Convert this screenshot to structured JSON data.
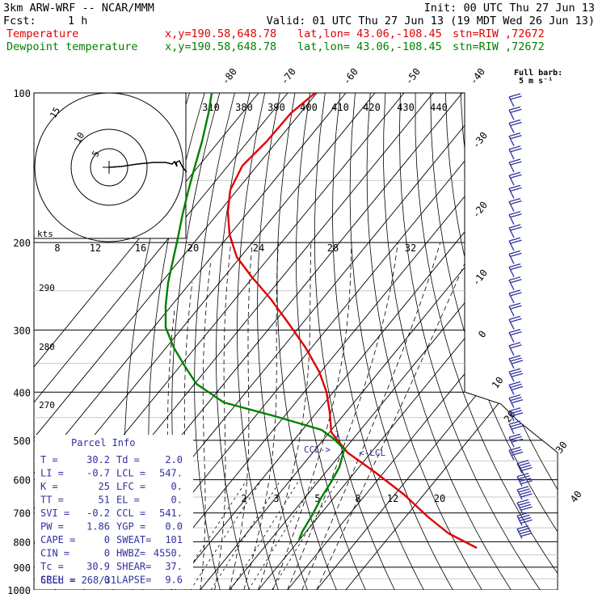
{
  "header": {
    "model": "3km ARW-WRF -- NCAR/MMM",
    "init": "Init: 00 UTC Thu 27 Jun 13",
    "fcst_label": "Fcst:",
    "fcst_value": "1 h",
    "valid": "Valid: 01 UTC Thu 27 Jun 13 (19 MDT Wed 26 Jun 13)",
    "temp_name": "Temperature",
    "dew_name": "Dewpoint temperature",
    "xy": "x,y=190.58,648.78",
    "latlon": "lat,lon= 43.06,-108.45",
    "stn": "stn=RIW ,72672",
    "full_barb_label": "Full barb:",
    "full_barb_value": "5 m s⁻¹"
  },
  "colors": {
    "temperature": "#e00000",
    "dewpoint": "#008000",
    "parcel_info": "#3030a0"
  },
  "chart_data": {
    "type": "line",
    "skew_t": true,
    "y_axis": "pressure (hPa)",
    "y_scale": "log",
    "ylim": [
      1000,
      100
    ],
    "isobars": [
      100,
      200,
      300,
      400,
      500,
      600,
      700,
      800,
      900,
      1000
    ],
    "isotherm_labels": [
      -80,
      -70,
      -60,
      -50,
      -40,
      -30,
      -20,
      -10,
      0,
      10,
      20,
      30,
      40
    ],
    "theta_labels": [
      310,
      380,
      390,
      400,
      410,
      420,
      430,
      440
    ],
    "theta_left_labels": [
      290,
      280,
      270
    ],
    "mixing_ratio_top_labels": [
      8,
      12,
      16,
      20,
      24,
      28,
      32
    ],
    "mixing_ratio_bottom_labels": [
      2,
      3,
      5,
      8,
      12,
      20
    ],
    "series": [
      {
        "name": "Temperature",
        "color": "#e00000",
        "points": [
          [
            100,
            -66
          ],
          [
            120,
            -68
          ],
          [
            150,
            -63
          ],
          [
            180,
            -55
          ],
          [
            200,
            -50
          ],
          [
            250,
            -39
          ],
          [
            300,
            -28
          ],
          [
            350,
            -18
          ],
          [
            400,
            -10
          ],
          [
            450,
            -3
          ],
          [
            500,
            2
          ],
          [
            550,
            7
          ],
          [
            600,
            11
          ],
          [
            700,
            19
          ],
          [
            800,
            27
          ]
        ]
      },
      {
        "name": "Dewpoint temperature",
        "color": "#008000",
        "points": [
          [
            100,
            -78
          ],
          [
            150,
            -85
          ],
          [
            200,
            -88
          ],
          [
            250,
            -87
          ],
          [
            300,
            -80
          ],
          [
            350,
            -71
          ],
          [
            400,
            -58
          ],
          [
            450,
            -30
          ],
          [
            500,
            -5
          ],
          [
            550,
            3
          ],
          [
            600,
            4
          ],
          [
            700,
            6
          ],
          [
            800,
            9
          ]
        ]
      }
    ],
    "hodograph": {
      "units": "kts",
      "ring_labels": [
        "5",
        "10",
        "15"
      ]
    },
    "annotations": [
      "CCL->",
      "<-LCL",
      "1"
    ],
    "parcel_info": {
      "title": "Parcel Info",
      "rows": [
        [
          "T  =",
          "30.2",
          "Td =",
          "2.0"
        ],
        [
          "LI =",
          "-0.7",
          "LCL =",
          "547."
        ],
        [
          "K  =",
          "25",
          "LFC =",
          "0."
        ],
        [
          "TT =",
          "51",
          "EL  =",
          "0."
        ],
        [
          "SVI =",
          "-0.2",
          "CCL =",
          "541."
        ],
        [
          "PW =",
          "1.86",
          "YGP =",
          "0.0"
        ],
        [
          "CAPE =",
          "0",
          "SWEAT=",
          "101"
        ],
        [
          "CIN =",
          "0",
          "HWBZ=",
          "4550."
        ],
        [
          "Tc =",
          "30.9",
          "SHEAR=",
          "37."
        ],
        [
          "SREH =",
          "0",
          "LAPSE=",
          "9.6"
        ]
      ],
      "cell": "CELL = 268/31"
    }
  }
}
